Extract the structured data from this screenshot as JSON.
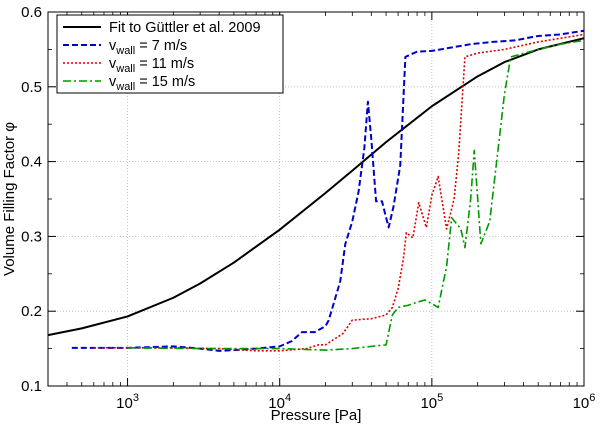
{
  "chart_data": {
    "type": "line",
    "xscale": "log",
    "xlim": [
      300,
      1000000
    ],
    "ylim": [
      0.1,
      0.6
    ],
    "grid": true,
    "legend_position": "top-left",
    "xlabel": "Pressure [Pa]",
    "ylabel": "Volume Filling Factor φ",
    "x_ticks": [
      1000,
      10000,
      100000,
      1000000
    ],
    "x_tick_labels": [
      {
        "base": "10",
        "exp": "3"
      },
      {
        "base": "10",
        "exp": "4"
      },
      {
        "base": "10",
        "exp": "5"
      },
      {
        "base": "10",
        "exp": "6"
      }
    ],
    "y_ticks": [
      0.1,
      0.2,
      0.3,
      0.4,
      0.5,
      0.6
    ],
    "y_tick_labels": [
      "0.1",
      "0.2",
      "0.3",
      "0.4",
      "0.5",
      "0.6"
    ],
    "series": [
      {
        "name": "Fit to Güttler et al. 2009",
        "label_main": "Fit to Güttler et al. 2009",
        "label_sub": "",
        "label_rest": "",
        "color": "#000000",
        "dash": "",
        "width": 2,
        "points": [
          [
            300,
            0.168
          ],
          [
            500,
            0.177
          ],
          [
            1000,
            0.193
          ],
          [
            2000,
            0.218
          ],
          [
            3000,
            0.237
          ],
          [
            5000,
            0.265
          ],
          [
            10000,
            0.309
          ],
          [
            20000,
            0.358
          ],
          [
            30000,
            0.388
          ],
          [
            50000,
            0.426
          ],
          [
            100000,
            0.474
          ],
          [
            200000,
            0.514
          ],
          [
            300000,
            0.533
          ],
          [
            500000,
            0.55
          ],
          [
            1000000,
            0.565
          ]
        ]
      },
      {
        "name": "v_wall = 7 m/s",
        "label_main": "v",
        "label_sub": "wall",
        "label_rest": " = 7 m/s",
        "color": "#0000cc",
        "dash": "6,3",
        "width": 2,
        "points": [
          [
            430,
            0.151
          ],
          [
            1000,
            0.151
          ],
          [
            2000,
            0.153
          ],
          [
            3000,
            0.15
          ],
          [
            4000,
            0.147
          ],
          [
            5000,
            0.148
          ],
          [
            7000,
            0.15
          ],
          [
            10000,
            0.153
          ],
          [
            12000,
            0.16
          ],
          [
            14000,
            0.172
          ],
          [
            17000,
            0.172
          ],
          [
            20000,
            0.18
          ],
          [
            21000,
            0.188
          ],
          [
            25000,
            0.24
          ],
          [
            27000,
            0.29
          ],
          [
            30000,
            0.32
          ],
          [
            33000,
            0.36
          ],
          [
            36000,
            0.418
          ],
          [
            38000,
            0.48
          ],
          [
            40000,
            0.43
          ],
          [
            43000,
            0.347
          ],
          [
            47000,
            0.347
          ],
          [
            52000,
            0.312
          ],
          [
            56000,
            0.34
          ],
          [
            62000,
            0.395
          ],
          [
            67000,
            0.54
          ],
          [
            80000,
            0.547
          ],
          [
            100000,
            0.548
          ],
          [
            130000,
            0.552
          ],
          [
            180000,
            0.557
          ],
          [
            250000,
            0.56
          ],
          [
            350000,
            0.562
          ],
          [
            500000,
            0.568
          ],
          [
            700000,
            0.57
          ],
          [
            1000000,
            0.575
          ]
        ]
      },
      {
        "name": "v_wall = 11 m/s",
        "label_main": "v",
        "label_sub": "wall",
        "label_rest": " = 11 m/s",
        "color": "#dd0000",
        "dash": "2,2",
        "width": 1.6,
        "points": [
          [
            600,
            0.151
          ],
          [
            2000,
            0.151
          ],
          [
            4000,
            0.15
          ],
          [
            7000,
            0.147
          ],
          [
            10000,
            0.147
          ],
          [
            15000,
            0.15
          ],
          [
            18000,
            0.155
          ],
          [
            20000,
            0.155
          ],
          [
            26000,
            0.17
          ],
          [
            30000,
            0.188
          ],
          [
            40000,
            0.19
          ],
          [
            50000,
            0.195
          ],
          [
            55000,
            0.205
          ],
          [
            60000,
            0.23
          ],
          [
            65000,
            0.27
          ],
          [
            68000,
            0.305
          ],
          [
            75000,
            0.298
          ],
          [
            82000,
            0.345
          ],
          [
            92000,
            0.312
          ],
          [
            100000,
            0.355
          ],
          [
            110000,
            0.38
          ],
          [
            125000,
            0.31
          ],
          [
            140000,
            0.35
          ],
          [
            150000,
            0.41
          ],
          [
            165000,
            0.54
          ],
          [
            200000,
            0.545
          ],
          [
            300000,
            0.55
          ],
          [
            500000,
            0.56
          ],
          [
            1000000,
            0.57
          ]
        ]
      },
      {
        "name": "v_wall = 15 m/s",
        "label_main": "v",
        "label_sub": "wall",
        "label_rest": " = 15 m/s",
        "color": "#009900",
        "dash": "8,3,2,3",
        "width": 1.6,
        "points": [
          [
            1000,
            0.151
          ],
          [
            3000,
            0.15
          ],
          [
            10000,
            0.15
          ],
          [
            20000,
            0.148
          ],
          [
            30000,
            0.15
          ],
          [
            40000,
            0.153
          ],
          [
            50000,
            0.155
          ],
          [
            55000,
            0.195
          ],
          [
            60000,
            0.205
          ],
          [
            70000,
            0.208
          ],
          [
            80000,
            0.212
          ],
          [
            90000,
            0.215
          ],
          [
            100000,
            0.21
          ],
          [
            110000,
            0.205
          ],
          [
            125000,
            0.26
          ],
          [
            135000,
            0.325
          ],
          [
            155000,
            0.31
          ],
          [
            165000,
            0.285
          ],
          [
            180000,
            0.35
          ],
          [
            190000,
            0.415
          ],
          [
            210000,
            0.29
          ],
          [
            240000,
            0.32
          ],
          [
            300000,
            0.49
          ],
          [
            330000,
            0.54
          ],
          [
            500000,
            0.55
          ],
          [
            700000,
            0.557
          ],
          [
            1000000,
            0.562
          ]
        ]
      }
    ]
  }
}
